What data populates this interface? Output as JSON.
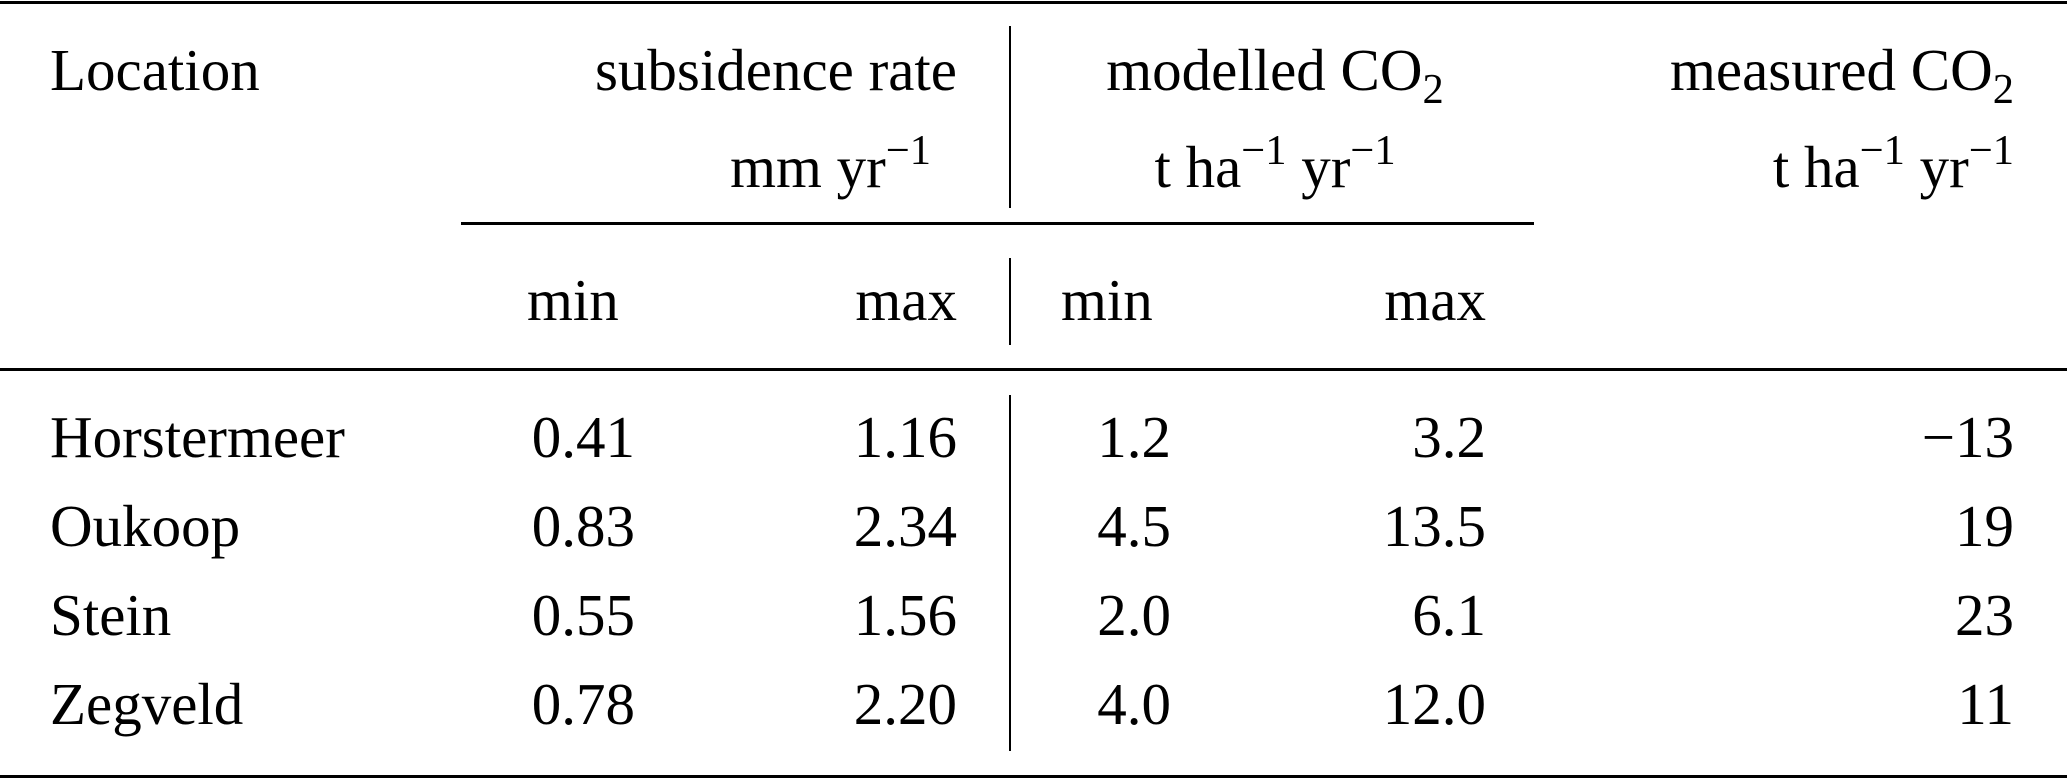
{
  "header": {
    "location": "Location",
    "subsidence": {
      "title": "subsidence rate",
      "unit": "mm yr",
      "unit_exp": "−1"
    },
    "modelled": {
      "title": "modelled CO",
      "sub": "2",
      "unit_a": "t ha",
      "exp_a": "−1",
      "unit_b": " yr",
      "exp_b": "−1"
    },
    "measured": {
      "title": "measured CO",
      "sub": "2",
      "unit_a": "t ha",
      "exp_a": "−1",
      "unit_b": " yr",
      "exp_b": "−1"
    },
    "min": "min",
    "max": "max"
  },
  "rows": [
    {
      "location": "Horstermeer",
      "sub_min": "0.41",
      "sub_max": "1.16",
      "mod_min": "1.2",
      "mod_max": "3.2",
      "measured": "−13"
    },
    {
      "location": "Oukoop",
      "sub_min": "0.83",
      "sub_max": "2.34",
      "mod_min": "4.5",
      "mod_max": "13.5",
      "measured": "19"
    },
    {
      "location": "Stein",
      "sub_min": "0.55",
      "sub_max": "1.56",
      "mod_min": "2.0",
      "mod_max": "6.1",
      "measured": "23"
    },
    {
      "location": "Zegveld",
      "sub_min": "0.78",
      "sub_max": "2.20",
      "mod_min": "4.0",
      "mod_max": "12.0",
      "measured": "11"
    }
  ]
}
